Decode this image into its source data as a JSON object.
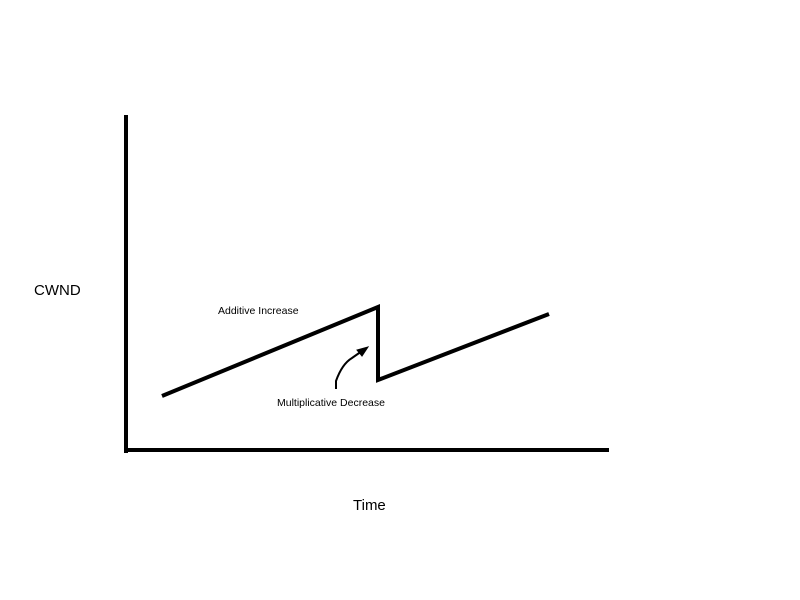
{
  "diagram": {
    "y_axis_label": "CWND",
    "x_axis_label": "Time",
    "annotations": {
      "additive_increase": "Additive Increase",
      "multiplicative_decrease": "Multiplicative Decrease"
    },
    "colors": {
      "background": "#ffffff",
      "stroke": "#000000"
    }
  }
}
